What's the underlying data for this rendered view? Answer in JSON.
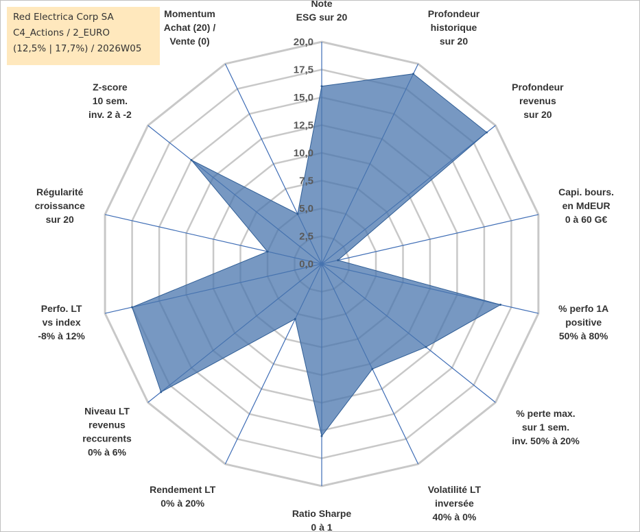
{
  "info": {
    "line1": "Red Electrica Corp SA",
    "line2": "C4_Actions / 2_EURO",
    "line3": "(12,5% | 17,7%) / 2026W05"
  },
  "chart_data": {
    "type": "radar",
    "categories": [
      [
        "Note",
        "ESG sur 20"
      ],
      [
        "Profondeur",
        "historique",
        "sur 20"
      ],
      [
        "Profondeur",
        "revenus",
        "sur 20"
      ],
      [
        "Capi. bours.",
        "en MdEUR",
        "0 à 60 G€"
      ],
      [
        "% perfo 1A",
        "positive",
        "50% à 80%"
      ],
      [
        "% perte max.",
        "sur 1 sem.",
        "inv. 50% à 20%"
      ],
      [
        "Volatilité LT",
        "inversée",
        "40% à 0%"
      ],
      [
        "Ratio Sharpe",
        "0 à 1"
      ],
      [
        "Rendement LT",
        "0% à 20%"
      ],
      [
        "Niveau LT",
        "revenus",
        "reccurents",
        "0% à 6%"
      ],
      [
        "Perfo. LT",
        "vs index",
        "-8% à 12%"
      ],
      [
        "Régularité",
        "croissance",
        "sur 20"
      ],
      [
        "Z-score",
        "10 sem.",
        "inv. 2 à -2"
      ],
      [
        "Momentum",
        "Achat (20) /",
        "Vente (0)"
      ]
    ],
    "values": [
      16.0,
      19.0,
      19.0,
      1.5,
      16.5,
      12.0,
      10.5,
      15.5,
      5.5,
      18.5,
      17.5,
      5.0,
      15.0,
      5.0
    ],
    "ticks": [
      "0,0",
      "2,5",
      "5,0",
      "7,5",
      "10,0",
      "12,5",
      "15,0",
      "17,5",
      "20,0"
    ],
    "rmin": 0,
    "rmax": 20,
    "colors": {
      "fill": "#4a76ad",
      "outline": "#2f5d95",
      "grid": "#c8c8c8",
      "spoke": "#3d6cb5"
    }
  }
}
